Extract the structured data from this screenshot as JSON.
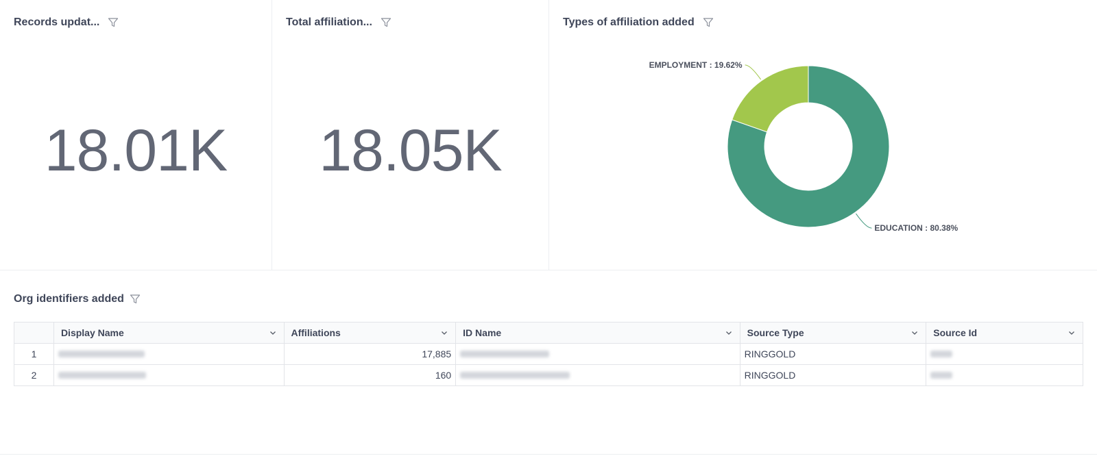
{
  "widgets": {
    "records": {
      "title": "Records updat...",
      "value": "18.01K"
    },
    "total": {
      "title": "Total affiliation...",
      "value": "18.05K"
    },
    "types": {
      "title": "Types of affiliation added",
      "colors": {
        "education": "#459a80",
        "employment": "#a2c74c"
      }
    }
  },
  "chart_data": {
    "type": "pie",
    "categories": [
      "EDUCATION",
      "EMPLOYMENT"
    ],
    "values": [
      80.38,
      19.62
    ],
    "labels": [
      "EDUCATION : 80.38%",
      "EMPLOYMENT : 19.62%"
    ],
    "title": "Types of affiliation added"
  },
  "org_table": {
    "title": "Org identifiers added",
    "columns": [
      "Display Name",
      "Affiliations",
      "ID Name",
      "Source Type",
      "Source Id"
    ],
    "rows": [
      {
        "index": "1",
        "affiliations": "17,885",
        "source_type": "RINGGOLD"
      },
      {
        "index": "2",
        "affiliations": "160",
        "source_type": "RINGGOLD"
      }
    ]
  },
  "icons": {
    "filter": "funnel-icon",
    "sort": "chevron-down-icon"
  }
}
